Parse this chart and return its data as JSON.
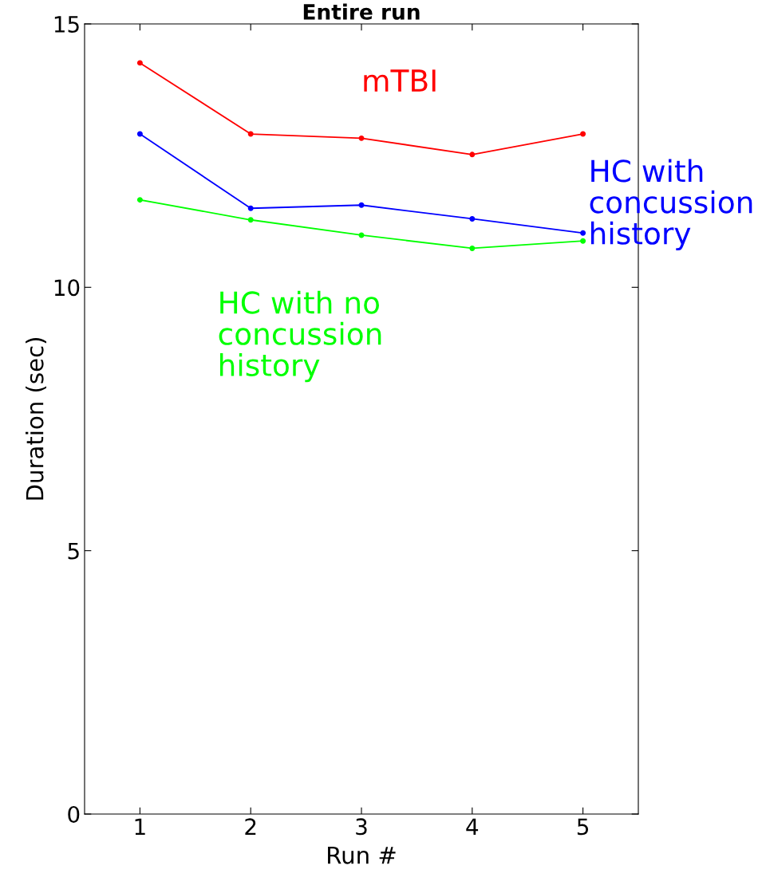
{
  "chart_data": {
    "type": "line",
    "title": "Entire run",
    "xlabel": "Run #",
    "ylabel": "Duration (sec)",
    "x": [
      1,
      2,
      3,
      4,
      5
    ],
    "series": [
      {
        "name": "mTBI",
        "color": "#ff0000",
        "values": [
          14.26,
          12.91,
          12.83,
          12.52,
          12.91
        ]
      },
      {
        "name": "HC with concussion history",
        "color": "#0000ff",
        "values": [
          12.91,
          11.5,
          11.56,
          11.3,
          11.03
        ]
      },
      {
        "name": "HC with no concussion history",
        "color": "#00ff00",
        "values": [
          11.66,
          11.28,
          10.99,
          10.74,
          10.88
        ]
      }
    ],
    "xlim": [
      0.5,
      5.5
    ],
    "xticks": [
      1,
      2,
      3,
      4,
      5
    ],
    "ylim": [
      0,
      15
    ],
    "yticks": [
      0,
      5,
      10,
      15
    ],
    "grid": false,
    "legend": false,
    "marker": "circle",
    "line_style": "solid"
  }
}
